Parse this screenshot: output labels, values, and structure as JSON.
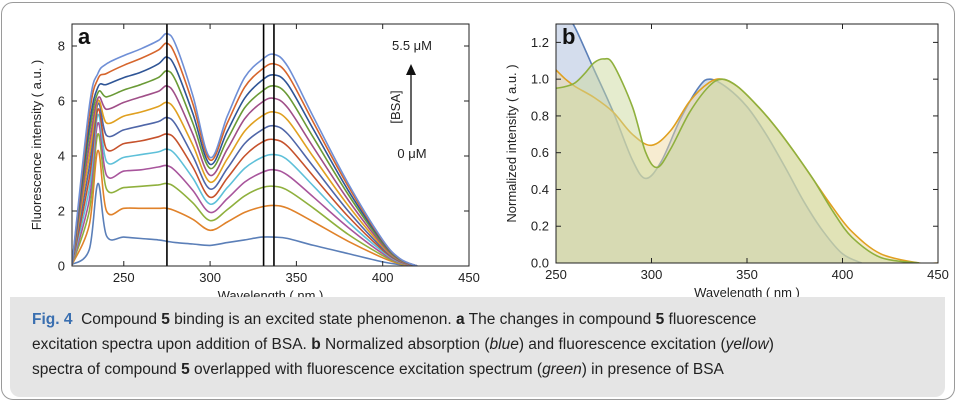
{
  "caption": {
    "fig_label": "Fig. 4",
    "line1_a": "Compound ",
    "line1_b": "5",
    "line1_c": " binding is an excited state phenomenon. ",
    "line1_d": "a",
    "line1_e": " The changes in compound ",
    "line1_f": "5",
    "line1_g": " fluorescence",
    "line2_a": "excitation spectra upon addition of BSA. ",
    "line2_b": "b",
    "line2_c": " Normalized absorption (",
    "line2_d": "blue",
    "line2_e": ") and fluorescence excitation (",
    "line2_f": "yellow",
    "line2_g": ")",
    "line3_a": "spectra of compound ",
    "line3_b": "5",
    "line3_c": " overlapped with fluorescence excitation spectrum (",
    "line3_d": "green",
    "line3_e": ") in presence of BSA"
  },
  "chart_data": [
    {
      "panel": "a",
      "type": "line",
      "xlabel": "Wavelength  ( nm )",
      "ylabel": "Fluorescence  intensity  ( a.u. )",
      "xlim": [
        220,
        450
      ],
      "ylim": [
        0,
        8.8
      ],
      "xticks": [
        "250",
        "300",
        "350",
        "400",
        "450"
      ],
      "yticks": [
        "0",
        "2",
        "4",
        "6",
        "8"
      ],
      "vlines": [
        275,
        331,
        337
      ],
      "annotation": {
        "top": "5.5  μM",
        "arrow_label": "[BSA]",
        "bottom": "0  μM"
      },
      "x": [
        220,
        230,
        235,
        240,
        250,
        260,
        270,
        275,
        280,
        290,
        300,
        310,
        320,
        330,
        337,
        345,
        360,
        380,
        400,
        410,
        420
      ],
      "series": [
        {
          "color": "#5b7fb8",
          "values": [
            0.05,
            0.6,
            3.0,
            1.1,
            1.05,
            1.0,
            0.95,
            0.9,
            0.85,
            0.8,
            0.75,
            0.85,
            0.95,
            1.05,
            1.05,
            1.0,
            0.75,
            0.45,
            0.15,
            0.05,
            0.0
          ]
        },
        {
          "color": "#e0822a",
          "values": [
            0.05,
            1.5,
            4.2,
            2.0,
            2.1,
            2.1,
            2.1,
            2.1,
            2.0,
            1.7,
            1.3,
            1.6,
            1.95,
            2.15,
            2.2,
            2.1,
            1.6,
            0.9,
            0.3,
            0.08,
            0.0
          ]
        },
        {
          "color": "#8fb03d",
          "values": [
            0.05,
            2.0,
            4.8,
            2.8,
            2.85,
            2.9,
            2.95,
            3.0,
            2.85,
            2.3,
            1.65,
            2.05,
            2.55,
            2.85,
            2.9,
            2.75,
            2.1,
            1.15,
            0.38,
            0.1,
            0.0
          ]
        },
        {
          "color": "#a8559c",
          "values": [
            0.05,
            2.4,
            5.2,
            3.3,
            3.45,
            3.5,
            3.6,
            3.65,
            3.45,
            2.75,
            1.95,
            2.45,
            3.05,
            3.4,
            3.5,
            3.3,
            2.5,
            1.4,
            0.45,
            0.12,
            0.0
          ]
        },
        {
          "color": "#5ec0d9",
          "values": [
            0.05,
            2.8,
            5.5,
            3.8,
            3.95,
            4.05,
            4.15,
            4.25,
            4.05,
            3.2,
            2.25,
            2.85,
            3.55,
            3.95,
            4.05,
            3.85,
            2.9,
            1.6,
            0.52,
            0.14,
            0.0
          ]
        },
        {
          "color": "#c6522c",
          "values": [
            0.05,
            3.2,
            5.7,
            4.25,
            4.45,
            4.55,
            4.7,
            4.8,
            4.6,
            3.6,
            2.5,
            3.2,
            4.0,
            4.5,
            4.6,
            4.35,
            3.25,
            1.8,
            0.58,
            0.16,
            0.0
          ]
        },
        {
          "color": "#4f66a8",
          "values": [
            0.05,
            3.6,
            5.9,
            4.75,
            4.95,
            5.1,
            5.25,
            5.4,
            5.15,
            4.0,
            2.8,
            3.55,
            4.45,
            4.95,
            5.1,
            4.8,
            3.6,
            2.0,
            0.64,
            0.18,
            0.0
          ]
        },
        {
          "color": "#e0a020",
          "values": [
            0.05,
            4.0,
            6.0,
            5.2,
            5.45,
            5.6,
            5.8,
            5.95,
            5.65,
            4.4,
            3.05,
            3.9,
            4.9,
            5.45,
            5.6,
            5.3,
            3.95,
            2.2,
            0.7,
            0.2,
            0.0
          ]
        },
        {
          "color": "#a04f88",
          "values": [
            0.05,
            4.4,
            6.1,
            5.7,
            5.95,
            6.15,
            6.35,
            6.55,
            6.2,
            4.8,
            3.3,
            4.25,
            5.35,
            5.95,
            6.1,
            5.75,
            4.3,
            2.4,
            0.76,
            0.21,
            0.0
          ]
        },
        {
          "color": "#6a9a36",
          "values": [
            0.05,
            4.8,
            6.3,
            6.15,
            6.4,
            6.6,
            6.85,
            7.1,
            6.75,
            5.2,
            3.55,
            4.6,
            5.75,
            6.35,
            6.55,
            6.2,
            4.65,
            2.6,
            0.82,
            0.23,
            0.0
          ]
        },
        {
          "color": "#2f5596",
          "values": [
            0.05,
            5.1,
            6.5,
            6.6,
            6.85,
            7.05,
            7.35,
            7.6,
            7.2,
            5.55,
            3.7,
            4.9,
            6.1,
            6.75,
            6.95,
            6.6,
            4.95,
            2.75,
            0.88,
            0.25,
            0.0
          ]
        },
        {
          "color": "#d6652c",
          "values": [
            0.05,
            5.5,
            6.8,
            7.0,
            7.3,
            7.55,
            7.85,
            8.1,
            7.65,
            5.9,
            3.85,
            5.2,
            6.5,
            7.15,
            7.35,
            6.95,
            5.2,
            2.9,
            0.92,
            0.26,
            0.0
          ]
        },
        {
          "color": "#6f8fd6",
          "values": [
            0.05,
            5.8,
            7.0,
            7.35,
            7.65,
            7.9,
            8.2,
            8.45,
            8.05,
            6.2,
            3.95,
            5.45,
            6.85,
            7.5,
            7.7,
            7.25,
            5.4,
            3.0,
            0.95,
            0.27,
            0.0
          ]
        }
      ]
    },
    {
      "panel": "b",
      "type": "area",
      "xlabel": "Wavelength  ( nm )",
      "ylabel": "Normalized  intensity  ( a.u. )",
      "xlim": [
        250,
        450
      ],
      "ylim": [
        0,
        1.3
      ],
      "xticks": [
        "250",
        "300",
        "350",
        "400",
        "450"
      ],
      "yticks": [
        "0.0",
        "0.2",
        "0.4",
        "0.6",
        "0.8",
        "1.0",
        "1.2"
      ],
      "series": [
        {
          "color": "#5b7fb8",
          "fill": "#a9bbdb",
          "x": [
            250,
            255,
            260,
            270,
            280,
            290,
            297,
            305,
            315,
            325,
            331,
            340,
            350,
            360,
            370,
            380,
            390,
            400,
            410
          ],
          "values": [
            1.4,
            1.35,
            1.28,
            1.05,
            0.82,
            0.56,
            0.46,
            0.55,
            0.78,
            0.96,
            1.0,
            0.95,
            0.85,
            0.7,
            0.52,
            0.33,
            0.17,
            0.05,
            0.0
          ]
        },
        {
          "color": "#e0a020",
          "fill": "#f0d9a4",
          "x": [
            250,
            255,
            260,
            270,
            280,
            290,
            300,
            310,
            320,
            330,
            337,
            345,
            355,
            365,
            375,
            385,
            395,
            405,
            420,
            440,
            450
          ],
          "values": [
            1.05,
            1.0,
            0.96,
            0.9,
            0.82,
            0.7,
            0.64,
            0.72,
            0.88,
            0.98,
            1.0,
            0.96,
            0.86,
            0.74,
            0.6,
            0.45,
            0.3,
            0.17,
            0.05,
            0.0,
            0.0
          ]
        },
        {
          "color": "#8fb03d",
          "fill": "#cbd99e",
          "x": [
            250,
            255,
            260,
            265,
            270,
            275,
            280,
            290,
            297,
            303,
            310,
            320,
            330,
            337,
            345,
            355,
            365,
            375,
            385,
            395,
            405,
            420,
            440
          ],
          "values": [
            0.95,
            0.96,
            0.98,
            1.03,
            1.09,
            1.11,
            1.08,
            0.85,
            0.6,
            0.52,
            0.62,
            0.82,
            0.96,
            1.0,
            0.96,
            0.86,
            0.74,
            0.6,
            0.45,
            0.28,
            0.14,
            0.03,
            0.0
          ]
        }
      ]
    }
  ]
}
